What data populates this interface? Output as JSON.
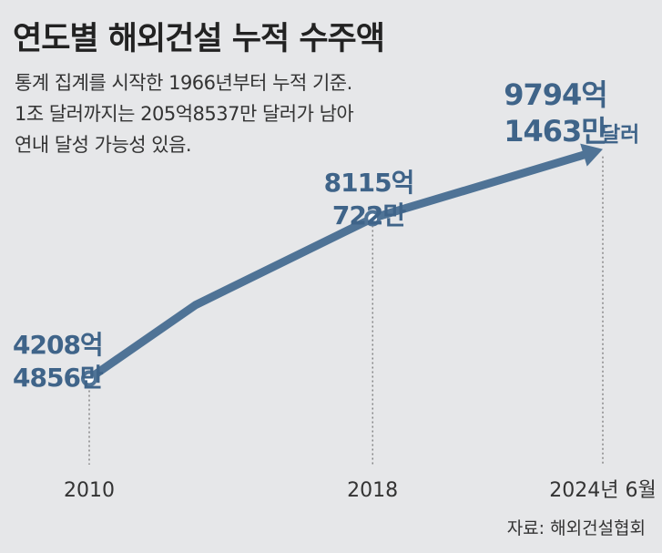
{
  "header": {
    "title": "연도별 해외건설 누적 수주액",
    "subtitle_lines": [
      "통계 집계를 시작한 1966년부터 누적 기준.",
      "1조 달러까지는 205억8537만 달러가 남아",
      "연내 달성 가능성 있음."
    ]
  },
  "source": "자료: 해외건설협회",
  "colors": {
    "line": "#4f7396",
    "accent_text": "#3f6489",
    "background": "#e6e7e9"
  },
  "chart_data": {
    "type": "line",
    "title": "연도별 해외건설 누적 수주액",
    "xlabel": "",
    "ylabel": "",
    "grid": false,
    "points": [
      {
        "x": 2010,
        "y": 4208.4856,
        "tick": "2010",
        "label_lines": [
          "4208억",
          "4856만"
        ]
      },
      {
        "x": 2013,
        "y": 6000
      },
      {
        "x": 2018,
        "y": 8115.0722,
        "tick": "2018",
        "label_lines": [
          "8115억",
          "722만"
        ]
      },
      {
        "x": 2024.5,
        "y": 9794.1463,
        "tick": "2024년 6월",
        "label_lines": [
          "9794억",
          "1463만"
        ],
        "unit": "달러"
      }
    ],
    "ylim": [
      3000,
      10500
    ],
    "xlim": [
      2010,
      2024.5
    ]
  }
}
